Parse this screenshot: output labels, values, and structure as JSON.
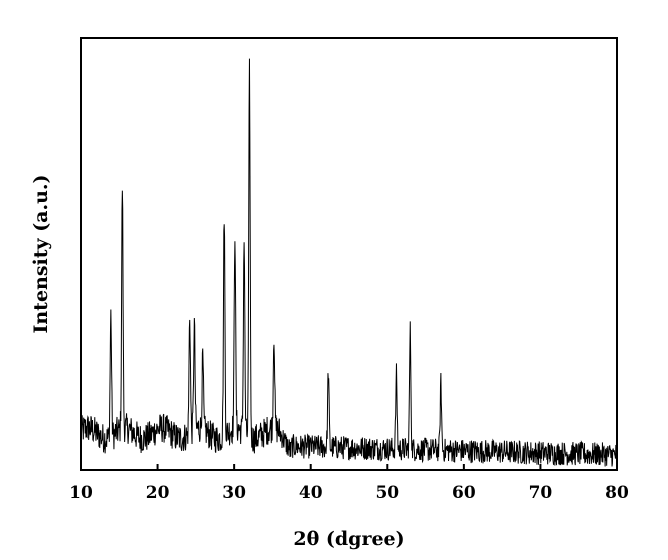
{
  "chart_data": {
    "type": "line",
    "title": "",
    "xlabel": "2θ (dgree)",
    "ylabel": "Intensity (a.u.)",
    "xlim": [
      10,
      80
    ],
    "x_ticks": [
      "10",
      "20",
      "30",
      "40",
      "50",
      "60",
      "70",
      "80"
    ],
    "y_ticks_shown": false,
    "grid": false,
    "legend": "none",
    "line_color": "#000000",
    "series": [
      {
        "peaks": [
          {
            "x": 13.9,
            "y": 0.36
          },
          {
            "x": 15.4,
            "y": 0.66
          },
          {
            "x": 24.2,
            "y": 0.36
          },
          {
            "x": 24.8,
            "y": 0.34
          },
          {
            "x": 25.9,
            "y": 0.26
          },
          {
            "x": 28.7,
            "y": 0.6
          },
          {
            "x": 30.1,
            "y": 0.56
          },
          {
            "x": 31.3,
            "y": 0.54
          },
          {
            "x": 32.0,
            "y": 0.92
          },
          {
            "x": 35.2,
            "y": 0.32
          },
          {
            "x": 42.3,
            "y": 0.23
          },
          {
            "x": 51.2,
            "y": 0.22
          },
          {
            "x": 53.0,
            "y": 0.32
          },
          {
            "x": 57.0,
            "y": 0.2
          }
        ]
      }
    ]
  }
}
